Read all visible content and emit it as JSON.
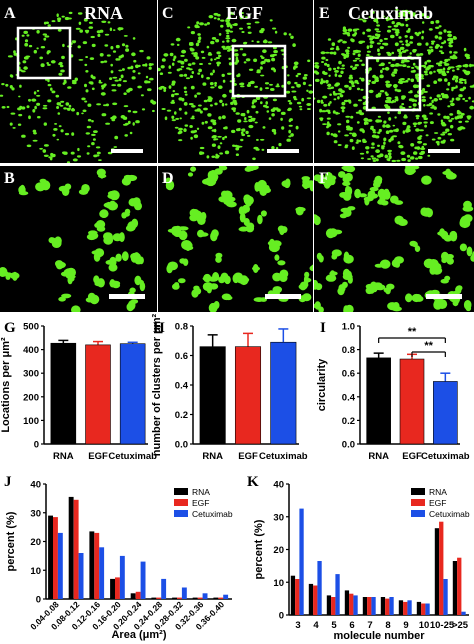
{
  "figure": {
    "top_panels": [
      {
        "letter": "A",
        "title": "RNA",
        "density": 300,
        "seed": 11
      },
      {
        "letter": "C",
        "title": "EGF",
        "density": 420,
        "seed": 23
      },
      {
        "letter": "E",
        "title": "Cetuximab",
        "density": 700,
        "seed": 37
      }
    ],
    "zoom_panels": [
      {
        "letter": "B",
        "density": 36,
        "seed": 5
      },
      {
        "letter": "D",
        "density": 55,
        "seed": 9
      },
      {
        "letter": "F",
        "density": 60,
        "seed": 17
      }
    ]
  },
  "colors": {
    "rna": "#000000",
    "egf": "#e8281f",
    "cetuximab": "#1c4fe6",
    "spots": "#66ee22"
  },
  "chart_data": [
    {
      "letter": "G",
      "type": "bar",
      "categories": [
        "RNA",
        "EGF",
        "Cetuximab"
      ],
      "values": [
        427,
        420,
        425
      ],
      "errors": [
        12,
        14,
        6
      ],
      "ylabel": "Locations per μm²",
      "ylim": [
        0,
        500
      ],
      "yticks": [
        "0",
        "100",
        "200",
        "300",
        "400",
        "500"
      ],
      "ytickvals": [
        0,
        100,
        200,
        300,
        400,
        500
      ]
    },
    {
      "letter": "H",
      "type": "bar",
      "categories": [
        "RNA",
        "EGF",
        "Cetuximab"
      ],
      "values": [
        0.66,
        0.66,
        0.69
      ],
      "errors": [
        0.08,
        0.09,
        0.09
      ],
      "ylabel": "number of clusters per μm²",
      "ylim": [
        0,
        0.8
      ],
      "yticks": [
        "0.0",
        "0.2",
        "0.4",
        "0.6",
        "0.8"
      ],
      "ytickvals": [
        0,
        0.2,
        0.4,
        0.6,
        0.8
      ]
    },
    {
      "letter": "I",
      "type": "bar",
      "categories": [
        "RNA",
        "EGF",
        "Cetuximab"
      ],
      "values": [
        0.73,
        0.72,
        0.53
      ],
      "errors": [
        0.04,
        0.04,
        0.07
      ],
      "ylabel": "circularity",
      "ylim": [
        0,
        1.0
      ],
      "yticks": [
        "0.0",
        "0.2",
        "0.4",
        "0.6",
        "0.8",
        "1.0"
      ],
      "ytickvals": [
        0,
        0.2,
        0.4,
        0.6,
        0.8,
        1.0
      ],
      "annotations": [
        "**",
        "**"
      ]
    },
    {
      "letter": "J",
      "type": "bar",
      "categories": [
        "0.04-0.08",
        "0.08-0.12",
        "0.12-0.16",
        "0.16-0.20",
        "0.20-0.24",
        "0.24-0.28",
        "0.28-0.32",
        "0.32-0.36",
        "0.36-0.40"
      ],
      "series": [
        {
          "name": "RNA",
          "values": [
            29,
            35.5,
            23.5,
            7,
            2,
            0.5,
            0.5,
            0.5,
            0.5
          ]
        },
        {
          "name": "EGF",
          "values": [
            28.5,
            34.5,
            23,
            7.5,
            2.5,
            0.5,
            0.5,
            0.5,
            0.5
          ]
        },
        {
          "name": "Cetuximab",
          "values": [
            23,
            16,
            18,
            15,
            13,
            7,
            4,
            2,
            1.5
          ]
        }
      ],
      "xlabel": "Area (μm²)",
      "ylabel": "percent (%)",
      "ylim": [
        0,
        40
      ],
      "yticks": [
        "0",
        "10",
        "20",
        "30",
        "40"
      ],
      "ytickvals": [
        0,
        10,
        20,
        30,
        40
      ]
    },
    {
      "letter": "K",
      "type": "bar",
      "categories": [
        "3",
        "4",
        "5",
        "6",
        "7",
        "8",
        "9",
        "10",
        "10-25",
        ">25"
      ],
      "series": [
        {
          "name": "RNA",
          "values": [
            12,
            9.5,
            6,
            7.5,
            5.5,
            5.5,
            4.5,
            4,
            26.5,
            16.5
          ]
        },
        {
          "name": "EGF",
          "values": [
            11,
            9,
            5.5,
            6.5,
            5.5,
            5,
            4,
            3.5,
            28.5,
            17.5
          ]
        },
        {
          "name": "Cetuximab",
          "values": [
            32.5,
            16.5,
            12.5,
            6,
            5.5,
            5.5,
            4.5,
            3.5,
            11,
            1
          ]
        }
      ],
      "xlabel": "molecule number",
      "ylabel": "percent (%)",
      "ylim": [
        0,
        40
      ],
      "yticks": [
        "0",
        "10",
        "20",
        "30",
        "40"
      ],
      "ytickvals": [
        0,
        10,
        20,
        30,
        40
      ]
    }
  ]
}
